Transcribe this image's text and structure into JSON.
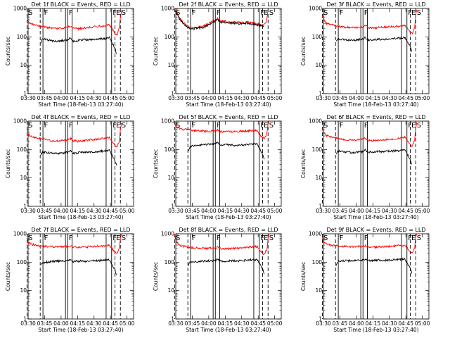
{
  "chart_data": {
    "type": "line",
    "y_scale": "log",
    "ylim": [
      1,
      1000
    ],
    "y_ticks": [
      1,
      10,
      100,
      1000
    ],
    "y_tick_labels": [
      "1",
      "10",
      "100",
      "1000"
    ],
    "ylabel": "Counts/sec",
    "xlabel": "Start Time (18-Feb-13 03:27:40)",
    "x_tick_labels": [
      "03:30",
      "03:45",
      "04:00",
      "04:15",
      "04:30",
      "04:45",
      "05:00"
    ],
    "x_ticks_min": [
      0,
      15,
      30,
      45,
      60,
      75,
      90
    ],
    "xlim_min": [
      0,
      96
    ],
    "series_colors": {
      "events": "#000000",
      "lld": "#ff0000"
    },
    "markers": [
      {
        "label": "S",
        "x_min": -1,
        "style": "dashed"
      },
      {
        "label": "",
        "x_min": 11,
        "style": "dashed"
      },
      {
        "label": "F",
        "x_min": 13.5,
        "style": "solid"
      },
      {
        "label": "",
        "x_min": 34,
        "style": "solid"
      },
      {
        "label": "F",
        "x_min": 36,
        "style": "solid"
      },
      {
        "label": "",
        "x_min": 40,
        "style": "solid"
      },
      {
        "label": "",
        "x_min": 71,
        "style": "solid"
      },
      {
        "label": "F",
        "x_min": 76,
        "style": "solid"
      },
      {
        "label": "E",
        "x_min": 79,
        "style": "dashed"
      },
      {
        "label": "S",
        "x_min": 84,
        "style": "dashed"
      }
    ],
    "panels": [
      {
        "title": "Det 1f BLACK = Events, RED = LLD",
        "events": {
          "x": [
            11.5,
            13,
            17,
            22,
            27,
            32,
            36,
            38,
            41,
            46,
            50,
            55,
            60,
            65,
            70,
            74,
            77,
            79,
            80.5
          ],
          "y": [
            60,
            85,
            80,
            72,
            70,
            75,
            78,
            90,
            70,
            75,
            80,
            78,
            82,
            85,
            88,
            95,
            55,
            40,
            25
          ]
        },
        "lld": {
          "x": [
            -1,
            0,
            3,
            6,
            10,
            13,
            17,
            22,
            27,
            32,
            36,
            38,
            41,
            46,
            50,
            55,
            60,
            65,
            70,
            74,
            77,
            79,
            81,
            83,
            84,
            85
          ],
          "y": [
            520,
            340,
            280,
            260,
            240,
            230,
            215,
            200,
            195,
            205,
            215,
            250,
            200,
            190,
            200,
            215,
            225,
            235,
            245,
            270,
            180,
            130,
            120,
            200,
            500,
            850
          ]
        }
      },
      {
        "title": "Det 2f BLACK = Events, RED = LLD",
        "events": {
          "x": [
            -1,
            1,
            3,
            6,
            10,
            15,
            20,
            25,
            30,
            33,
            36,
            38,
            40,
            44,
            48,
            52,
            56,
            60,
            65,
            70,
            75,
            78,
            80
          ],
          "y": [
            900,
            650,
            450,
            320,
            220,
            190,
            200,
            215,
            265,
            310,
            360,
            410,
            320,
            330,
            305,
            300,
            290,
            285,
            300,
            280,
            260,
            245,
            235
          ]
        },
        "lld": {
          "x": [
            -1,
            1,
            3,
            6,
            10,
            15,
            20,
            25,
            30,
            33,
            36,
            38,
            40,
            44,
            48,
            52,
            56,
            60,
            65,
            70,
            75,
            78,
            80,
            82,
            84
          ],
          "y": [
            1000,
            720,
            500,
            350,
            240,
            210,
            220,
            240,
            290,
            340,
            400,
            450,
            350,
            360,
            335,
            330,
            320,
            315,
            330,
            305,
            285,
            270,
            260,
            300,
            800
          ]
        }
      },
      {
        "title": "Det 3f BLACK = Events, RED = LLD",
        "events": {
          "x": [
            11.5,
            13,
            17,
            22,
            27,
            32,
            36,
            38,
            41,
            46,
            50,
            55,
            60,
            65,
            70,
            74,
            77,
            79,
            80.5
          ],
          "y": [
            70,
            85,
            80,
            78,
            75,
            80,
            82,
            95,
            78,
            80,
            82,
            80,
            85,
            88,
            90,
            95,
            60,
            45,
            30
          ]
        },
        "lld": {
          "x": [
            -1,
            0,
            3,
            6,
            10,
            13,
            17,
            22,
            27,
            32,
            36,
            38,
            41,
            46,
            50,
            55,
            60,
            65,
            70,
            74,
            77,
            79,
            81,
            83,
            84,
            85
          ],
          "y": [
            560,
            380,
            300,
            270,
            250,
            240,
            225,
            215,
            210,
            215,
            220,
            255,
            210,
            205,
            210,
            220,
            225,
            230,
            240,
            260,
            190,
            140,
            130,
            210,
            550,
            900
          ]
        }
      },
      {
        "title": "Det 4f BLACK = Events, RED = LLD",
        "events": {
          "x": [
            11.5,
            13,
            17,
            22,
            27,
            32,
            36,
            38,
            41,
            46,
            50,
            55,
            60,
            65,
            70,
            74,
            77,
            79,
            80.5
          ],
          "y": [
            65,
            82,
            78,
            74,
            72,
            75,
            80,
            92,
            72,
            78,
            82,
            80,
            84,
            86,
            90,
            95,
            58,
            42,
            28
          ]
        },
        "lld": {
          "x": [
            -1,
            0,
            3,
            6,
            10,
            13,
            17,
            22,
            27,
            32,
            36,
            38,
            41,
            46,
            50,
            55,
            60,
            65,
            70,
            74,
            77,
            79,
            81,
            83,
            84,
            85
          ],
          "y": [
            540,
            350,
            290,
            265,
            245,
            235,
            220,
            205,
            200,
            210,
            218,
            252,
            205,
            195,
            205,
            218,
            228,
            238,
            248,
            268,
            185,
            135,
            125,
            205,
            520,
            870
          ]
        }
      },
      {
        "title": "Det 5f BLACK = Events, RED = LLD",
        "events": {
          "x": [
            11.5,
            13,
            17,
            22,
            27,
            32,
            36,
            38,
            41,
            46,
            50,
            55,
            60,
            65,
            70,
            74,
            77,
            79,
            80.5
          ],
          "y": [
            95,
            125,
            140,
            145,
            150,
            155,
            160,
            175,
            145,
            148,
            145,
            140,
            145,
            150,
            155,
            160,
            95,
            70,
            45
          ]
        },
        "lld": {
          "x": [
            -1,
            0,
            3,
            6,
            10,
            13,
            17,
            22,
            27,
            32,
            36,
            38,
            41,
            46,
            50,
            55,
            60,
            65,
            70,
            74,
            77,
            79,
            81,
            83,
            84,
            85
          ],
          "y": [
            850,
            640,
            560,
            520,
            500,
            490,
            470,
            450,
            440,
            445,
            450,
            480,
            430,
            420,
            425,
            430,
            440,
            450,
            460,
            470,
            320,
            260,
            250,
            380,
            800,
            1000
          ]
        }
      },
      {
        "title": "Det 6f BLACK = Events, RED = LLD",
        "events": {
          "x": [
            11.5,
            13,
            17,
            22,
            27,
            32,
            36,
            38,
            41,
            46,
            50,
            55,
            60,
            65,
            70,
            74,
            77,
            79,
            80.5
          ],
          "y": [
            70,
            88,
            85,
            80,
            78,
            80,
            85,
            98,
            80,
            82,
            85,
            83,
            88,
            90,
            92,
            98,
            62,
            46,
            30
          ]
        },
        "lld": {
          "x": [
            -1,
            0,
            3,
            6,
            10,
            13,
            17,
            22,
            27,
            32,
            36,
            38,
            41,
            46,
            50,
            55,
            60,
            65,
            70,
            74,
            77,
            79,
            81,
            83,
            84,
            85
          ],
          "y": [
            580,
            390,
            310,
            280,
            258,
            245,
            230,
            218,
            212,
            220,
            225,
            258,
            212,
            205,
            212,
            222,
            230,
            240,
            250,
            270,
            195,
            145,
            132,
            215,
            560,
            920
          ]
        }
      },
      {
        "title": "Det 7f BLACK = Events, RED = LLD",
        "events": {
          "x": [
            11.5,
            13,
            17,
            22,
            27,
            32,
            36,
            38,
            41,
            46,
            50,
            55,
            60,
            65,
            70,
            74,
            77,
            79,
            80.5
          ],
          "y": [
            75,
            95,
            100,
            105,
            110,
            112,
            115,
            125,
            105,
            108,
            110,
            108,
            112,
            115,
            118,
            122,
            75,
            55,
            35
          ]
        },
        "lld": {
          "x": [
            -1,
            0,
            3,
            6,
            10,
            13,
            17,
            22,
            27,
            32,
            36,
            38,
            41,
            46,
            50,
            55,
            60,
            65,
            70,
            74,
            77,
            79,
            81,
            83,
            84,
            85
          ],
          "y": [
            780,
            520,
            430,
            400,
            380,
            370,
            360,
            350,
            345,
            350,
            355,
            380,
            340,
            335,
            340,
            350,
            360,
            370,
            380,
            395,
            280,
            220,
            210,
            320,
            700,
            980
          ]
        }
      },
      {
        "title": "Det 8f BLACK = Events, RED = LLD",
        "events": {
          "x": [
            11.5,
            13,
            17,
            22,
            27,
            32,
            36,
            38,
            41,
            46,
            50,
            55,
            60,
            65,
            70,
            74,
            77,
            79,
            80.5
          ],
          "y": [
            80,
            100,
            105,
            108,
            110,
            112,
            115,
            125,
            108,
            110,
            112,
            110,
            114,
            118,
            120,
            125,
            78,
            58,
            38
          ]
        },
        "lld": {
          "x": [
            -1,
            0,
            3,
            6,
            10,
            13,
            17,
            22,
            27,
            32,
            36,
            38,
            41,
            46,
            50,
            55,
            60,
            65,
            70,
            74,
            77,
            79,
            81,
            83,
            84,
            85
          ],
          "y": [
            900,
            560,
            420,
            370,
            340,
            330,
            320,
            310,
            305,
            310,
            315,
            340,
            300,
            295,
            300,
            310,
            320,
            330,
            340,
            355,
            250,
            200,
            190,
            300,
            680,
            950
          ]
        }
      },
      {
        "title": "Det 9f BLACK = Events, RED = LLD",
        "events": {
          "x": [
            11.5,
            13,
            17,
            22,
            27,
            32,
            36,
            38,
            41,
            46,
            50,
            55,
            60,
            65,
            70,
            74,
            77,
            79,
            80.5
          ],
          "y": [
            80,
            105,
            110,
            112,
            115,
            118,
            120,
            130,
            112,
            115,
            118,
            115,
            118,
            122,
            125,
            130,
            80,
            60,
            40
          ]
        },
        "lld": {
          "x": [
            -1,
            0,
            3,
            6,
            10,
            13,
            17,
            22,
            27,
            32,
            36,
            38,
            41,
            46,
            50,
            55,
            60,
            65,
            70,
            74,
            77,
            79,
            81,
            83,
            84,
            85
          ],
          "y": [
            800,
            520,
            430,
            400,
            385,
            375,
            365,
            355,
            350,
            355,
            360,
            385,
            345,
            340,
            345,
            355,
            365,
            375,
            385,
            400,
            285,
            225,
            215,
            330,
            720,
            990
          ]
        }
      }
    ]
  }
}
